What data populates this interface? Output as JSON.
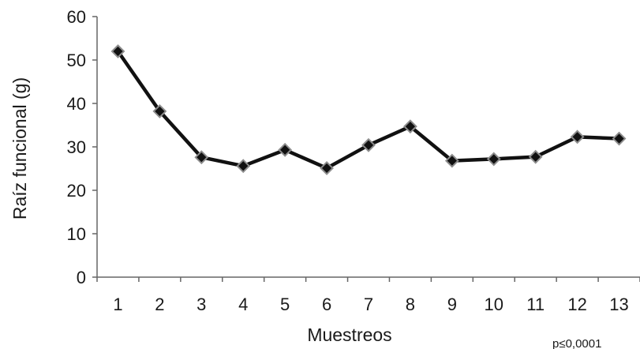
{
  "chart_data": {
    "type": "line",
    "title": "",
    "xlabel": "Muestreos",
    "ylabel": "Raíz funcional (g)",
    "x": [
      1,
      2,
      3,
      4,
      5,
      6,
      7,
      8,
      9,
      10,
      11,
      12,
      13
    ],
    "categories": [
      "1",
      "2",
      "3",
      "4",
      "5",
      "6",
      "7",
      "8",
      "9",
      "10",
      "11",
      "12",
      "13"
    ],
    "series": [
      {
        "values": [
          52.0,
          38.2,
          27.6,
          25.6,
          29.3,
          25.1,
          30.4,
          34.7,
          26.8,
          27.2,
          27.7,
          32.3,
          31.9
        ]
      }
    ],
    "ylim": [
      0,
      60
    ],
    "yticks": [
      "0",
      "10",
      "20",
      "30",
      "40",
      "50",
      "60"
    ],
    "grid": false,
    "legend": "none",
    "annotation": "p≤0,0001",
    "colors": {
      "line": "#111111",
      "marker_fill": "#111111",
      "marker_stroke": "#8c8c8c",
      "axis": "#666666"
    }
  }
}
